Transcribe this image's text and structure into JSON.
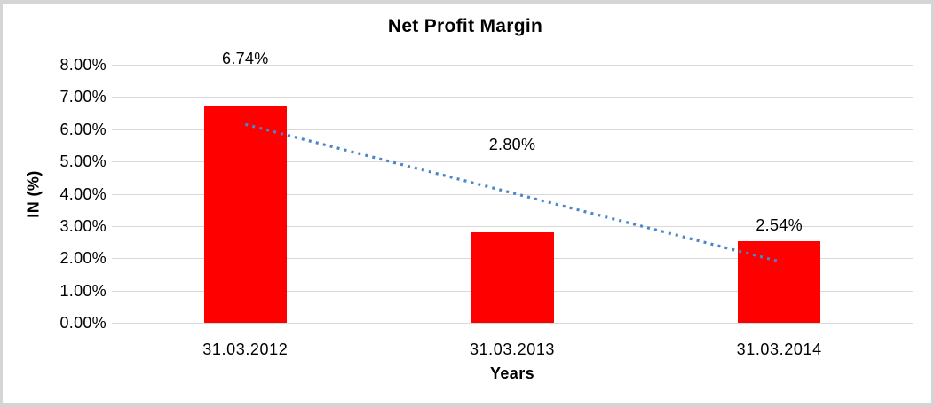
{
  "frame": {
    "border_color": "#d5d5d5",
    "background_color": "#ffffff"
  },
  "chart_data": {
    "type": "bar",
    "title": "Net Profit Margin",
    "xlabel": "Years",
    "ylabel": "IN (%)",
    "categories": [
      "31.03.2012",
      "31.03.2013",
      "31.03.2014"
    ],
    "values": [
      6.74,
      2.8,
      2.54
    ],
    "data_labels": [
      "6.74%",
      "2.80%",
      "2.54%"
    ],
    "ylim": [
      0,
      8
    ],
    "ytick_step": 1,
    "ytick_labels": [
      "0.00%",
      "1.00%",
      "2.00%",
      "3.00%",
      "4.00%",
      "5.00%",
      "6.00%",
      "7.00%",
      "8.00%"
    ],
    "grid": true,
    "gridline_color": "#d9d9d9",
    "bar_color": "#ff0000",
    "legend_position": "none",
    "trendline": {
      "type": "linear",
      "style": "dotted",
      "color": "#4a86c8",
      "start_value": 6.15,
      "end_value": 1.9
    }
  }
}
